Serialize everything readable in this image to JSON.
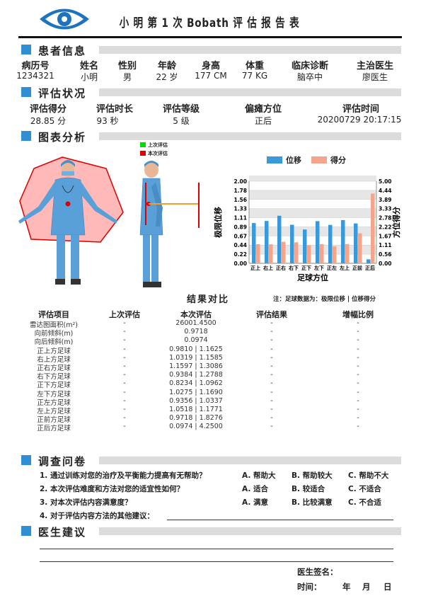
{
  "report_title": "小 明 第 1 次 Bobath 评 估 报 告 表",
  "patient": {
    "section_title": "患者信息",
    "headers": [
      "病历号",
      "姓名",
      "性别",
      "年龄",
      "身高",
      "体重",
      "临床诊断",
      "主治医生"
    ],
    "values": [
      "1234321",
      "小明",
      "男",
      "22 岁",
      "177 CM",
      "77 KG",
      "脑卒中",
      "廖医生"
    ]
  },
  "assessment": {
    "section_title": "评估状况",
    "headers": [
      "评估得分",
      "评估时长",
      "评估等级",
      "偏瘫方位",
      "评估时间"
    ],
    "values": [
      "28.85 分",
      "93 秒",
      "5 级",
      "正后",
      "20200729 20:17:15"
    ]
  },
  "charts": {
    "section_title": "图表分析",
    "legend_last": "上次评估",
    "legend_current": "本次评估",
    "colors": {
      "last": "#00dd00",
      "current": "#dd0000",
      "displacement": "#3a9ad9",
      "score": "#f5a68a"
    }
  },
  "chart_data": {
    "type": "bar",
    "xlabel": "足球方位",
    "ylabel": "极限位移",
    "y2label": "方位得分",
    "categories": [
      "正上",
      "右上",
      "正右",
      "右下",
      "正下",
      "左下",
      "正左",
      "左上",
      "正前",
      "正后"
    ],
    "series": [
      {
        "name": "位移",
        "axis": "left",
        "values": [
          0.981,
          1.0319,
          1.1597,
          0.9384,
          0.8234,
          1.0275,
          0.9356,
          1.0518,
          0.9718,
          0.0974
        ]
      },
      {
        "name": "得分",
        "axis": "right",
        "values": [
          1.1625,
          1.1585,
          1.3086,
          1.2788,
          1.0962,
          1.169,
          1.0337,
          1.1771,
          1.8276,
          4.25
        ]
      }
    ],
    "ylim": [
      0,
      2.0
    ],
    "y2lim": [
      0,
      5.0
    ],
    "yticks": [
      "0.00",
      "0.22",
      "0.44",
      "0.67",
      "0.89",
      "1.11",
      "1.33",
      "1.56",
      "1.78",
      "2.00"
    ],
    "y2ticks": [
      "0.00",
      "0.56",
      "1.11",
      "1.67",
      "2.22",
      "2.78",
      "3.33",
      "3.89",
      "4.44",
      "5.00"
    ],
    "grid": true,
    "legend": "top"
  },
  "results": {
    "title": "结果对比",
    "note": "注：足球数据为：极限位移 | 位移得分",
    "headers": [
      "评估项目",
      "上次评估",
      "本次评估",
      "评估结果",
      "增幅比例"
    ],
    "rows": [
      [
        "雷达图面积(m²)",
        "-",
        "26001.4500",
        "-",
        "-"
      ],
      [
        "向前倾斜(m)",
        "-",
        "0.9718",
        "-",
        "-"
      ],
      [
        "向后倾斜(m)",
        "-",
        "0.0974",
        "-",
        "-"
      ],
      [
        "正上方足球",
        "-",
        "0.9810 | 1.1625",
        "-",
        "-"
      ],
      [
        "右上方足球",
        "-",
        "1.0319 | 1.1585",
        "-",
        "-"
      ],
      [
        "正右方足球",
        "-",
        "1.1597 | 1.3086",
        "-",
        "-"
      ],
      [
        "右下方足球",
        "-",
        "0.9384 | 1.2788",
        "-",
        "-"
      ],
      [
        "正下方足球",
        "-",
        "0.8234 | 1.0962",
        "-",
        "-"
      ],
      [
        "左下方足球",
        "-",
        "1.0275 | 1.1690",
        "-",
        "-"
      ],
      [
        "正左方足球",
        "-",
        "0.9356 | 1.0337",
        "-",
        "-"
      ],
      [
        "左上方足球",
        "-",
        "1.0518 | 1.1771",
        "-",
        "-"
      ],
      [
        "正前方足球",
        "-",
        "0.9718 | 1.8276",
        "-",
        "-"
      ],
      [
        "正后方足球",
        "-",
        "0.0974 | 4.2500",
        "-",
        "-"
      ]
    ]
  },
  "survey": {
    "section_title": "调查问卷",
    "questions": [
      {
        "text": "1. 通过训练对您的治疗及平衡能力提高有无帮助？",
        "a": "A. 帮助大",
        "b": "B. 帮助较大",
        "c": "C. 帮助不大"
      },
      {
        "text": "2. 本次评估难度和方法对您的适宜性如何？",
        "a": "A. 适合",
        "b": "B. 较适合",
        "c": "C. 不适合"
      },
      {
        "text": "3. 对本次评估内容满意度？",
        "a": "A. 满意",
        "b": "B. 比较满意",
        "c": "C. 不合适"
      }
    ],
    "q4": "4. 对于评估内容方法的其他建议："
  },
  "advice": {
    "section_title": "医生建议",
    "signature_label": "医生签名：",
    "time_label": "时间：",
    "year": "年",
    "month": "月",
    "day": "日"
  }
}
